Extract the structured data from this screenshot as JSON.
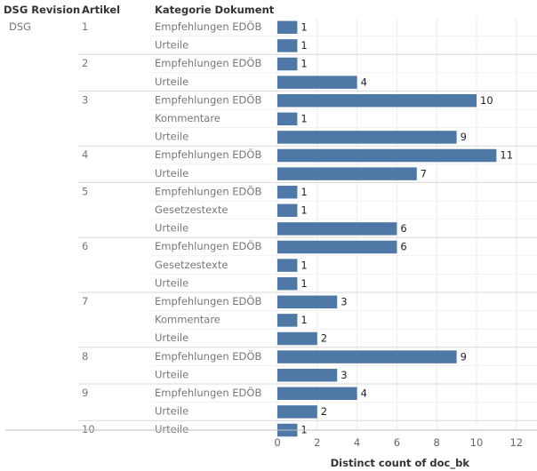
{
  "chart_data": {
    "type": "bar",
    "orientation": "horizontal",
    "headers": {
      "revision": "DSG Revision",
      "artikel": "Artikel",
      "kategorie": "Kategorie Dokument"
    },
    "revision": "DSG",
    "groups": [
      {
        "artikel": "1",
        "rows": [
          {
            "kategorie": "Empfehlungen EDÖB",
            "value": 1
          },
          {
            "kategorie": "Urteile",
            "value": 1
          }
        ]
      },
      {
        "artikel": "2",
        "rows": [
          {
            "kategorie": "Empfehlungen EDÖB",
            "value": 1
          },
          {
            "kategorie": "Urteile",
            "value": 4
          }
        ]
      },
      {
        "artikel": "3",
        "rows": [
          {
            "kategorie": "Empfehlungen EDÖB",
            "value": 10
          },
          {
            "kategorie": "Kommentare",
            "value": 1
          },
          {
            "kategorie": "Urteile",
            "value": 9
          }
        ]
      },
      {
        "artikel": "4",
        "rows": [
          {
            "kategorie": "Empfehlungen EDÖB",
            "value": 11
          },
          {
            "kategorie": "Urteile",
            "value": 7
          }
        ]
      },
      {
        "artikel": "5",
        "rows": [
          {
            "kategorie": "Empfehlungen EDÖB",
            "value": 1
          },
          {
            "kategorie": "Gesetzestexte",
            "value": 1
          },
          {
            "kategorie": "Urteile",
            "value": 6
          }
        ]
      },
      {
        "artikel": "6",
        "rows": [
          {
            "kategorie": "Empfehlungen EDÖB",
            "value": 6
          },
          {
            "kategorie": "Gesetzestexte",
            "value": 1
          },
          {
            "kategorie": "Urteile",
            "value": 1
          }
        ]
      },
      {
        "artikel": "7",
        "rows": [
          {
            "kategorie": "Empfehlungen EDÖB",
            "value": 3
          },
          {
            "kategorie": "Kommentare",
            "value": 1
          },
          {
            "kategorie": "Urteile",
            "value": 2
          }
        ]
      },
      {
        "artikel": "8",
        "rows": [
          {
            "kategorie": "Empfehlungen EDÖB",
            "value": 9
          },
          {
            "kategorie": "Urteile",
            "value": 3
          }
        ]
      },
      {
        "artikel": "9",
        "rows": [
          {
            "kategorie": "Empfehlungen EDÖB",
            "value": 4
          },
          {
            "kategorie": "Urteile",
            "value": 2
          }
        ]
      },
      {
        "artikel": "10",
        "rows": [
          {
            "kategorie": "Urteile",
            "value": 1
          }
        ]
      }
    ],
    "xaxis": {
      "label": "Distinct count of doc_bk",
      "ticks": [
        0,
        2,
        4,
        6,
        8,
        10,
        12
      ],
      "range": [
        0,
        12.5
      ]
    },
    "bar_color": "#4e79a7",
    "grid": true
  }
}
